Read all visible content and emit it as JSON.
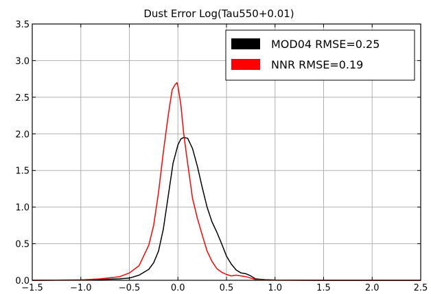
{
  "chart_data": {
    "type": "line",
    "title": "Dust Error Log(Tau550+0.01)",
    "xlabel": "",
    "ylabel": "",
    "xlim": [
      -1.5,
      2.5
    ],
    "ylim": [
      0.0,
      3.5
    ],
    "grid": true,
    "legend_position": "top-right",
    "x_ticks": [
      "−1.5",
      "−1.0",
      "−0.5",
      "0.0",
      "0.5",
      "1.0",
      "1.5",
      "2.0",
      "2.5"
    ],
    "x_tick_values": [
      -1.5,
      -1.0,
      -0.5,
      0.0,
      0.5,
      1.0,
      1.5,
      2.0,
      2.5
    ],
    "y_ticks": [
      "0.0",
      "0.5",
      "1.0",
      "1.5",
      "2.0",
      "2.5",
      "3.0",
      "3.5"
    ],
    "y_tick_values": [
      0.0,
      0.5,
      1.0,
      1.5,
      2.0,
      2.5,
      3.0,
      3.5
    ],
    "series": [
      {
        "name": "MOD04 RMSE=0.25",
        "color": "#000000",
        "x": [
          -1.5,
          -1.0,
          -0.8,
          -0.6,
          -0.5,
          -0.4,
          -0.3,
          -0.25,
          -0.2,
          -0.15,
          -0.1,
          -0.05,
          0.0,
          0.03,
          0.06,
          0.1,
          0.15,
          0.2,
          0.25,
          0.3,
          0.35,
          0.4,
          0.45,
          0.5,
          0.55,
          0.6,
          0.65,
          0.7,
          0.75,
          0.8,
          0.9,
          1.0,
          1.5,
          2.0,
          2.5
        ],
        "y": [
          0.0,
          0.005,
          0.01,
          0.02,
          0.03,
          0.07,
          0.15,
          0.24,
          0.4,
          0.7,
          1.15,
          1.6,
          1.85,
          1.93,
          1.95,
          1.94,
          1.8,
          1.56,
          1.27,
          1.0,
          0.8,
          0.66,
          0.5,
          0.33,
          0.22,
          0.14,
          0.1,
          0.09,
          0.06,
          0.02,
          0.008,
          0.004,
          0.0,
          0.0,
          0.0
        ]
      },
      {
        "name": "NNR RMSE=0.19",
        "color": "#ff0000",
        "x": [
          -1.5,
          -1.0,
          -0.8,
          -0.6,
          -0.5,
          -0.4,
          -0.3,
          -0.25,
          -0.2,
          -0.15,
          -0.1,
          -0.06,
          -0.03,
          -0.01,
          0.0,
          0.03,
          0.06,
          0.1,
          0.15,
          0.2,
          0.25,
          0.3,
          0.35,
          0.4,
          0.45,
          0.5,
          0.55,
          0.6,
          0.65,
          0.7,
          0.75,
          0.8,
          0.9,
          1.0,
          1.5,
          2.0,
          2.5
        ],
        "y": [
          0.0,
          0.005,
          0.02,
          0.05,
          0.1,
          0.2,
          0.48,
          0.75,
          1.2,
          1.75,
          2.25,
          2.6,
          2.67,
          2.7,
          2.65,
          2.4,
          2.0,
          1.6,
          1.12,
          0.85,
          0.62,
          0.4,
          0.26,
          0.16,
          0.11,
          0.08,
          0.06,
          0.07,
          0.06,
          0.05,
          0.03,
          0.01,
          0.005,
          0.003,
          0.0,
          0.0,
          0.0
        ]
      }
    ]
  }
}
